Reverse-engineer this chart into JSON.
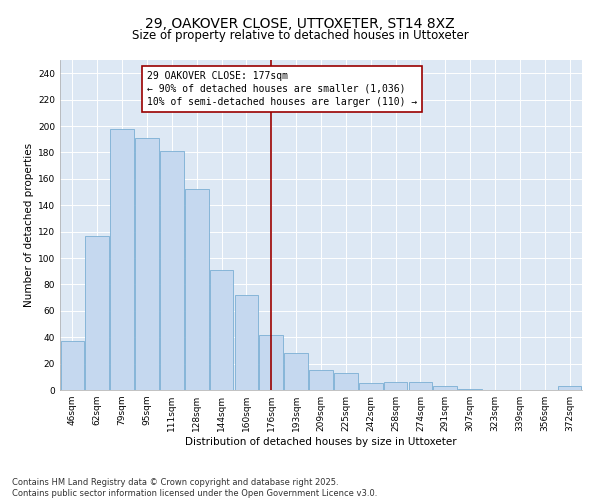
{
  "title": "29, OAKOVER CLOSE, UTTOXETER, ST14 8XZ",
  "subtitle": "Size of property relative to detached houses in Uttoxeter",
  "xlabel": "Distribution of detached houses by size in Uttoxeter",
  "ylabel": "Number of detached properties",
  "categories": [
    "46sqm",
    "62sqm",
    "79sqm",
    "95sqm",
    "111sqm",
    "128sqm",
    "144sqm",
    "160sqm",
    "176sqm",
    "193sqm",
    "209sqm",
    "225sqm",
    "242sqm",
    "258sqm",
    "274sqm",
    "291sqm",
    "307sqm",
    "323sqm",
    "339sqm",
    "356sqm",
    "372sqm"
  ],
  "values": [
    37,
    117,
    198,
    191,
    181,
    152,
    91,
    72,
    42,
    28,
    15,
    13,
    5,
    6,
    6,
    3,
    1,
    0,
    0,
    0,
    3
  ],
  "bar_color": "#c5d8ef",
  "bar_edge_color": "#7aafd4",
  "vline_x": 8,
  "vline_color": "#990000",
  "annotation_text": "29 OAKOVER CLOSE: 177sqm\n← 90% of detached houses are smaller (1,036)\n10% of semi-detached houses are larger (110) →",
  "annotation_box_color": "#ffffff",
  "annotation_box_edge": "#990000",
  "ylim": [
    0,
    250
  ],
  "yticks": [
    0,
    20,
    40,
    60,
    80,
    100,
    120,
    140,
    160,
    180,
    200,
    220,
    240
  ],
  "bg_color": "#dde8f4",
  "footer_text": "Contains HM Land Registry data © Crown copyright and database right 2025.\nContains public sector information licensed under the Open Government Licence v3.0.",
  "title_fontsize": 10,
  "subtitle_fontsize": 8.5,
  "axis_label_fontsize": 7.5,
  "tick_fontsize": 6.5,
  "annotation_fontsize": 7,
  "footer_fontsize": 6
}
